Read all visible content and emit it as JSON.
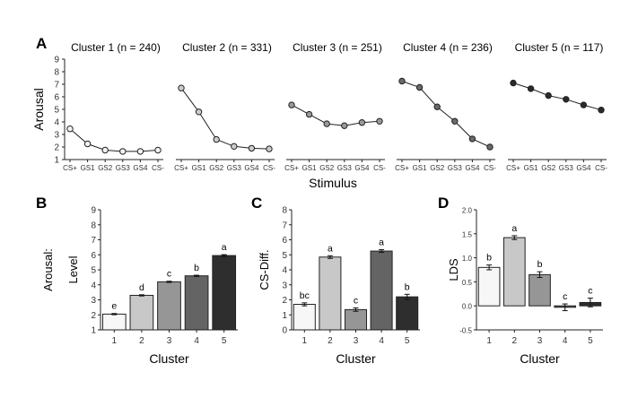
{
  "panel_letters": [
    "A",
    "B",
    "C",
    "D"
  ],
  "chart_data": [
    {
      "panel": "A",
      "type": "line",
      "ylabel": "Arousal",
      "xlabel": "Stimulus",
      "ylim": [
        1,
        9
      ],
      "yticks": [
        1,
        2,
        3,
        4,
        5,
        6,
        7,
        8,
        9
      ],
      "categories": [
        "CS+",
        "GS1",
        "GS2",
        "GS3",
        "GS4",
        "CS-"
      ],
      "marker_colors": [
        "#f2f2f2",
        "#cccccc",
        "#9a9a9a",
        "#6a6a6a",
        "#2b2b2b"
      ],
      "series": [
        {
          "name": "Cluster 1 (n = 240)",
          "values": [
            3.45,
            2.25,
            1.75,
            1.65,
            1.65,
            1.75
          ]
        },
        {
          "name": "Cluster 2 (n = 331)",
          "values": [
            6.7,
            4.8,
            2.6,
            2.05,
            1.9,
            1.85
          ]
        },
        {
          "name": "Cluster 3 (n = 251)",
          "values": [
            5.35,
            4.6,
            3.85,
            3.7,
            3.95,
            4.05
          ]
        },
        {
          "name": "Cluster 4 (n = 236)",
          "values": [
            7.25,
            6.75,
            5.2,
            4.05,
            2.65,
            2.0
          ]
        },
        {
          "name": "Cluster 5 (n = 117)",
          "values": [
            7.1,
            6.65,
            6.1,
            5.8,
            5.35,
            4.95
          ]
        }
      ]
    },
    {
      "panel": "B",
      "type": "bar",
      "ylabel": "Arousal:",
      "ylabel2": "Level",
      "xlabel": "Cluster",
      "ylim": [
        1,
        9
      ],
      "yticks": [
        1,
        2,
        3,
        4,
        5,
        6,
        7,
        8,
        9
      ],
      "categories": [
        "1",
        "2",
        "3",
        "4",
        "5"
      ],
      "values": [
        2.05,
        3.3,
        4.2,
        4.6,
        5.95
      ],
      "errors": [
        0.04,
        0.04,
        0.04,
        0.04,
        0.06
      ],
      "letters": [
        "e",
        "d",
        "c",
        "b",
        "a"
      ],
      "colors": [
        "#f7f7f7",
        "#c8c8c8",
        "#969696",
        "#646464",
        "#2e2e2e"
      ]
    },
    {
      "panel": "C",
      "type": "bar",
      "ylabel": "CS-Diff.",
      "xlabel": "Cluster",
      "ylim": [
        0,
        8
      ],
      "yticks": [
        0,
        1,
        2,
        3,
        4,
        5,
        6,
        7,
        8
      ],
      "categories": [
        "1",
        "2",
        "3",
        "4",
        "5"
      ],
      "values": [
        1.7,
        4.85,
        1.35,
        5.25,
        2.2
      ],
      "errors": [
        0.1,
        0.09,
        0.11,
        0.09,
        0.17
      ],
      "letters": [
        "bc",
        "a",
        "c",
        "a",
        "b"
      ],
      "colors": [
        "#f7f7f7",
        "#c8c8c8",
        "#969696",
        "#646464",
        "#2e2e2e"
      ]
    },
    {
      "panel": "D",
      "type": "bar",
      "ylabel": "LDS",
      "xlabel": "Cluster",
      "ylim": [
        -0.5,
        2.0
      ],
      "yticks": [
        -0.5,
        0.0,
        0.5,
        1.0,
        1.5,
        2.0
      ],
      "yticklabels": [
        "-0.5",
        "0.0",
        "0.5",
        "1.0",
        "1.5",
        "2.0"
      ],
      "categories": [
        "1",
        "2",
        "3",
        "4",
        "5"
      ],
      "values": [
        0.8,
        1.42,
        0.65,
        -0.03,
        0.07
      ],
      "errors": [
        0.05,
        0.04,
        0.06,
        0.07,
        0.09
      ],
      "letters": [
        "b",
        "a",
        "b",
        "c",
        "c"
      ],
      "colors": [
        "#f7f7f7",
        "#c8c8c8",
        "#969696",
        "#646464",
        "#2e2e2e"
      ]
    }
  ]
}
